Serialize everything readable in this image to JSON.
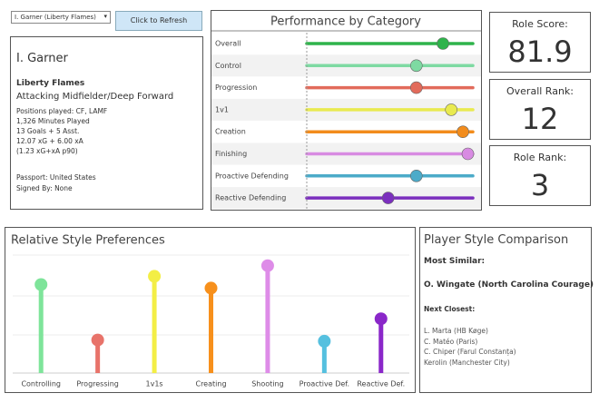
{
  "controls": {
    "dropdown": "I. Garner (Liberty Flames)",
    "button": "Click to Refresh"
  },
  "player": {
    "name": "I. Garner",
    "team": "Liberty Flames",
    "role": "Attacking Midfielder/Deep Forward",
    "details": [
      "Positions played: CF, LAMF",
      "1,326 Minutes Played",
      "13 Goals + 5 Asst.",
      "12.07 xG + 6.00 xA",
      "(1.23 xG+xA p90)"
    ],
    "extra": [
      "Passport: United States",
      "Signed By: None"
    ]
  },
  "scores": [
    {
      "label": "Role Score:",
      "value": "81.9"
    },
    {
      "label": "Overall Rank:",
      "value": "12"
    },
    {
      "label": "Role Rank:",
      "value": "3"
    }
  ],
  "performance": {
    "type": "dot",
    "title": "Performance by Category",
    "xlim": [
      0,
      100
    ],
    "categories": [
      "Overall",
      "Control",
      "Progression",
      "1v1",
      "Creation",
      "Finishing",
      "Proactive Defending",
      "Reactive Defending"
    ],
    "values": [
      82,
      66,
      66,
      87,
      94,
      97,
      66,
      49
    ],
    "colors": [
      "#2fb34b",
      "#7edaa2",
      "#e26b5b",
      "#e9ea4f",
      "#f28c1c",
      "#d88be2",
      "#4cabc9",
      "#7b2fbe"
    ]
  },
  "style": {
    "type": "lollipop",
    "title": "Relative Style Preferences",
    "ylim": [
      0,
      100
    ],
    "categories": [
      "Controlling",
      "Progressing",
      "1v1s",
      "Creating",
      "Shooting",
      "Proactive Def.",
      "Reactive Def."
    ],
    "values": [
      75,
      28,
      82,
      72,
      91,
      27,
      46
    ],
    "colors": [
      "#7ee49a",
      "#e8736a",
      "#f3ee45",
      "#f7901c",
      "#de8ce8",
      "#55c0df",
      "#8a27c9"
    ]
  },
  "comparison": {
    "title": "Player Style Comparison",
    "most_similar_label": "Most Similar:",
    "most_similar": "O. Wingate (North Carolina Courage)",
    "next_label": "Next Closest:",
    "next": [
      "L. Marta (HB Køge)",
      "C. Matéo (Paris)",
      "C. Chiper (Farul Constanța)",
      "Kerolin (Manchester City)"
    ]
  }
}
